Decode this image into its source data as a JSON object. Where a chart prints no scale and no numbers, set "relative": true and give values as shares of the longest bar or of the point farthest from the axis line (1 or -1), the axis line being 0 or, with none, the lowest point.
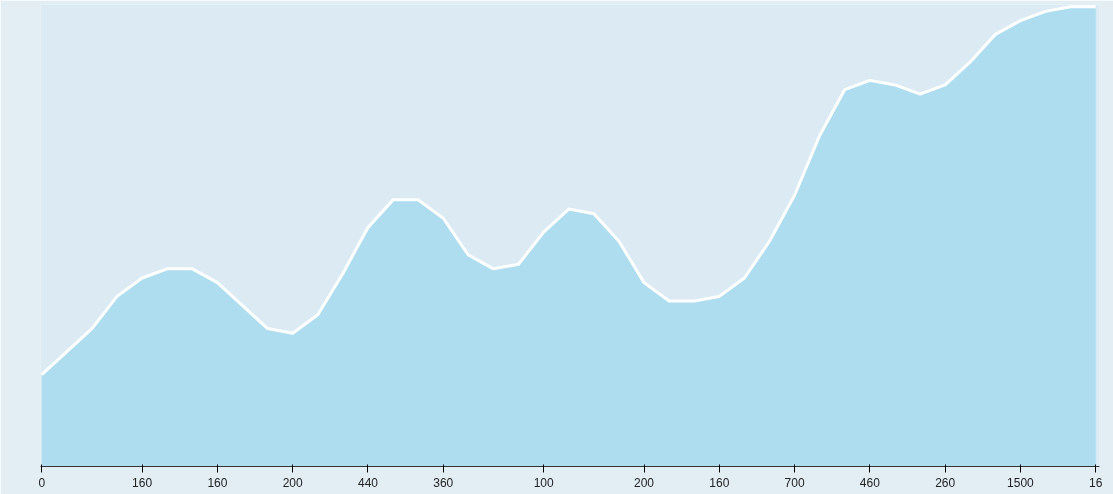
{
  "chart_data": {
    "type": "area",
    "relative": true,
    "categories": [
      "0",
      null,
      null,
      null,
      "160",
      null,
      null,
      "160",
      null,
      null,
      "200",
      null,
      null,
      "440",
      null,
      null,
      "360",
      null,
      null,
      null,
      "100",
      null,
      null,
      null,
      "200",
      null,
      null,
      "160",
      null,
      null,
      "700",
      null,
      null,
      "460",
      null,
      null,
      "260",
      null,
      null,
      "1500",
      null,
      null,
      "16"
    ],
    "series": [
      {
        "color": "#a8dbee",
        "values": [
          0.2,
          0.25,
          0.3,
          0.37,
          0.41,
          0.43,
          0.43,
          0.4,
          0.35,
          0.3,
          0.29,
          0.33,
          0.42,
          0.52,
          0.58,
          0.58,
          0.54,
          0.46,
          0.43,
          0.44,
          0.51,
          0.56,
          0.55,
          0.49,
          0.4,
          0.36,
          0.36,
          0.37,
          0.41,
          0.49,
          0.59,
          0.72,
          0.82,
          0.84,
          0.83,
          0.81,
          0.83,
          0.88,
          0.94,
          0.97,
          0.99,
          1,
          1
        ]
      }
    ],
    "grid": false
  }
}
